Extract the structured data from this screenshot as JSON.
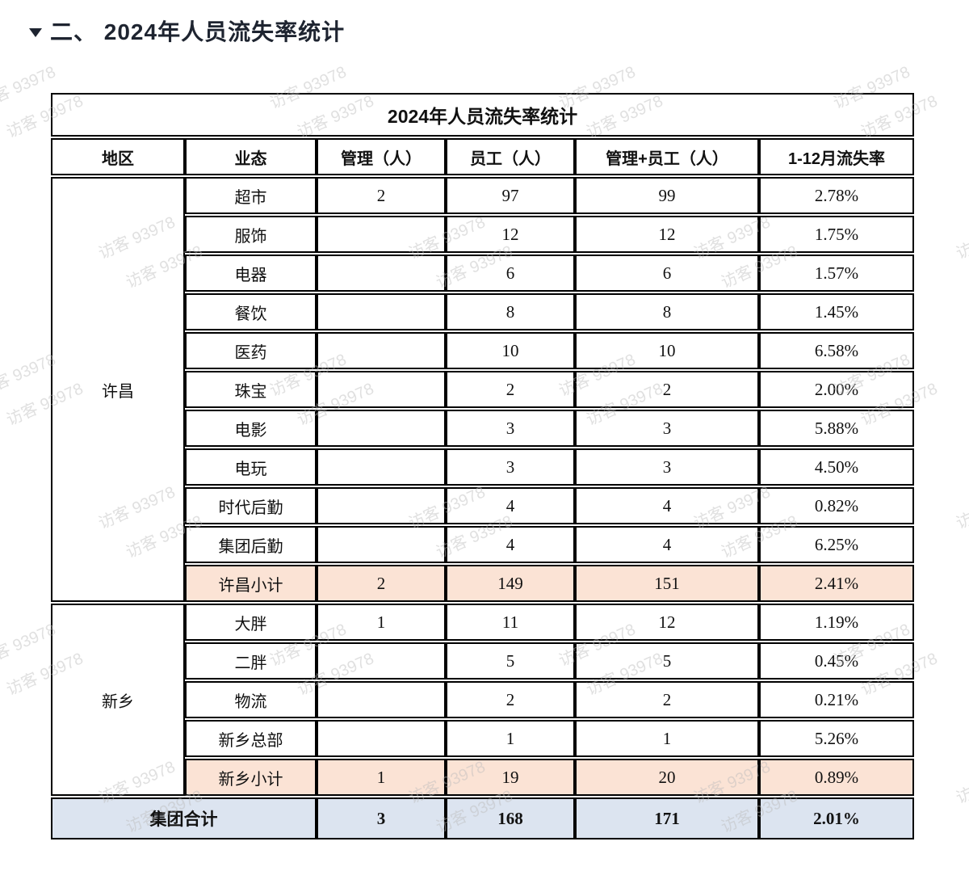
{
  "heading": {
    "title": "二、 2024年人员流失率统计",
    "marker_icon": "collapse-triangle"
  },
  "watermark": {
    "text": "访客 93978"
  },
  "colors": {
    "subtotal_bg": "#fbe3d5",
    "grand_total_bg": "#dce4f0",
    "border": "#000000",
    "heading_text": "#1e2430",
    "watermark_text": "#bbbbbb"
  },
  "table": {
    "title": "2024年人员流失率统计",
    "columns": [
      "地区",
      "业态",
      "管理（人）",
      "员工（人）",
      "管理+员工（人）",
      "1-12月流失率"
    ],
    "column_keys": [
      "region",
      "business",
      "mgmt",
      "staff",
      "combined",
      "rate"
    ],
    "regions": [
      {
        "name": "许昌",
        "rows": [
          {
            "business": "超市",
            "mgmt": "2",
            "staff": "97",
            "total": "99",
            "rate": "2.78%"
          },
          {
            "business": "服饰",
            "mgmt": "",
            "staff": "12",
            "total": "12",
            "rate": "1.75%"
          },
          {
            "business": "电器",
            "mgmt": "",
            "staff": "6",
            "total": "6",
            "rate": "1.57%"
          },
          {
            "business": "餐饮",
            "mgmt": "",
            "staff": "8",
            "total": "8",
            "rate": "1.45%"
          },
          {
            "business": "医药",
            "mgmt": "",
            "staff": "10",
            "total": "10",
            "rate": "6.58%"
          },
          {
            "business": "珠宝",
            "mgmt": "",
            "staff": "2",
            "total": "2",
            "rate": "2.00%"
          },
          {
            "business": "电影",
            "mgmt": "",
            "staff": "3",
            "total": "3",
            "rate": "5.88%"
          },
          {
            "business": "电玩",
            "mgmt": "",
            "staff": "3",
            "total": "3",
            "rate": "4.50%"
          },
          {
            "business": "时代后勤",
            "mgmt": "",
            "staff": "4",
            "total": "4",
            "rate": "0.82%"
          },
          {
            "business": "集团后勤",
            "mgmt": "",
            "staff": "4",
            "total": "4",
            "rate": "6.25%"
          }
        ],
        "subtotal": {
          "business": "许昌小计",
          "mgmt": "2",
          "staff": "149",
          "total": "151",
          "rate": "2.41%"
        }
      },
      {
        "name": "新乡",
        "rows": [
          {
            "business": "大胖",
            "mgmt": "1",
            "staff": "11",
            "total": "12",
            "rate": "1.19%"
          },
          {
            "business": "二胖",
            "mgmt": "",
            "staff": "5",
            "total": "5",
            "rate": "0.45%"
          },
          {
            "business": "物流",
            "mgmt": "",
            "staff": "2",
            "total": "2",
            "rate": "0.21%"
          },
          {
            "business": "新乡总部",
            "mgmt": "",
            "staff": "1",
            "total": "1",
            "rate": "5.26%"
          }
        ],
        "subtotal": {
          "business": "新乡小计",
          "mgmt": "1",
          "staff": "19",
          "total": "20",
          "rate": "0.89%"
        }
      }
    ],
    "grand_total": {
      "label": "集团合计",
      "mgmt": "3",
      "staff": "168",
      "total": "171",
      "rate": "2.01%"
    }
  }
}
